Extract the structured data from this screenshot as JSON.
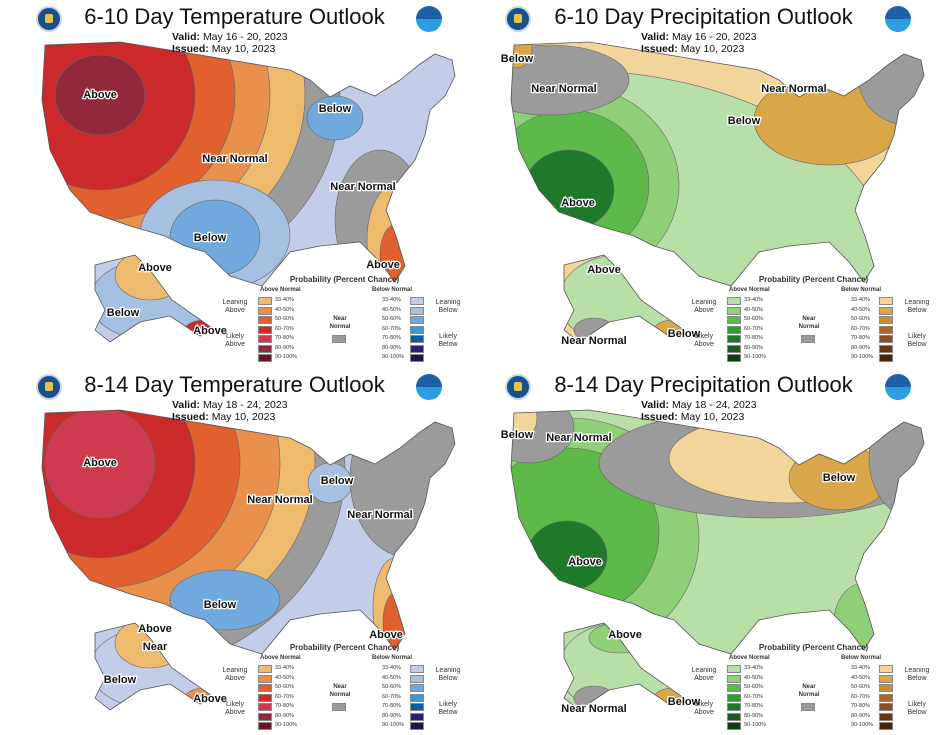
{
  "legend": {
    "title": "Probability (Percent Chance)",
    "near_normal": "Near Normal",
    "near_normal_color": "#9b9b9b",
    "ranges": [
      "33-40%",
      "40-50%",
      "50-60%",
      "60-70%",
      "70-80%",
      "80-90%",
      "90-100%"
    ],
    "temperature": {
      "left_header": "Above Normal",
      "right_header": "Below Normal",
      "left_lean": "Leaning Above",
      "left_likely": "Likely Above",
      "right_lean": "Leaning Below",
      "right_likely": "Likely Below",
      "left_colors": [
        "#eebb6e",
        "#e8904c",
        "#e0602f",
        "#cc2a2a",
        "#d03a50",
        "#93283c",
        "#6b1420"
      ],
      "right_colors": [
        "#c3cde8",
        "#a6c0e2",
        "#72a9dc",
        "#3c98dc",
        "#0e5ca8",
        "#2e1f7a",
        "#1b1450"
      ]
    },
    "precipitation": {
      "left_header": "Above Normal",
      "right_header": "Below Normal",
      "left_lean": "Leaning Above",
      "left_likely": "Likely Above",
      "right_lean": "Leaning Below",
      "right_likely": "Likely Below",
      "left_colors": [
        "#b9dfa8",
        "#8fcf78",
        "#5cb94a",
        "#2f9e32",
        "#1e7a2a",
        "#1c5a26",
        "#0e3a14"
      ],
      "right_colors": [
        "#f1d59a",
        "#d9a64a",
        "#c98a3a",
        "#a9672c",
        "#8a4d22",
        "#6b3414",
        "#4a2208"
      ]
    }
  },
  "panels": [
    {
      "title": "6-10 Day Temperature Outlook",
      "valid_label": "Valid:",
      "valid": "May 16 - 20, 2023",
      "issued_label": "Issued:",
      "issued": "May 10, 2023",
      "kind": "temperature",
      "labels": [
        "Above",
        "Near Normal",
        "Below",
        "Near Normal",
        "Below",
        "Above",
        "Above",
        "Below",
        "Above"
      ]
    },
    {
      "title": "6-10 Day Precipitation Outlook",
      "valid_label": "Valid:",
      "valid": "May 16 - 20, 2023",
      "issued_label": "Issued:",
      "issued": "May 10, 2023",
      "kind": "precipitation",
      "labels": [
        "Below",
        "Near Normal",
        "Near Normal",
        "Below",
        "Above",
        "Above",
        "Near Normal",
        "Below"
      ]
    },
    {
      "title": "8-14 Day Temperature Outlook",
      "valid_label": "Valid:",
      "valid": "May 18 - 24, 2023",
      "issued_label": "Issued:",
      "issued": "May 10, 2023",
      "kind": "temperature",
      "labels": [
        "Above",
        "Near Normal",
        "Below",
        "Near Normal",
        "Below",
        "Above",
        "Above",
        "Near",
        "Below",
        "Above"
      ]
    },
    {
      "title": "8-14 Day Precipitation Outlook",
      "valid_label": "Valid:",
      "valid": "May 18 - 24, 2023",
      "issued_label": "Issued:",
      "issued": "May 10, 2023",
      "kind": "precipitation",
      "labels": [
        "Below",
        "Near Normal",
        "Below",
        "Above",
        "Above",
        "Near Normal",
        "Below"
      ]
    }
  ]
}
